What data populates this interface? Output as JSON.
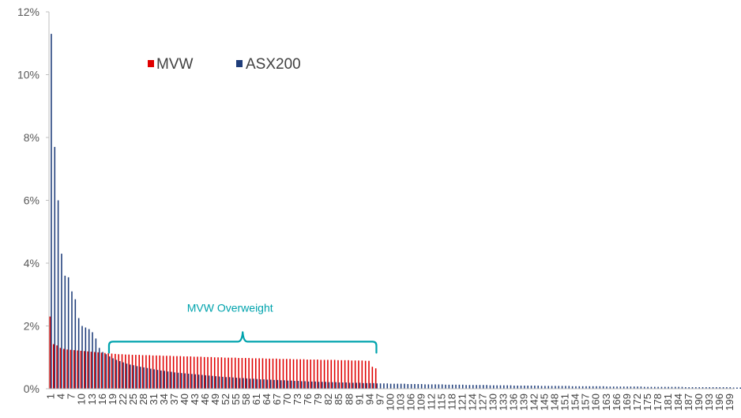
{
  "chart_data": {
    "type": "bar",
    "title": "",
    "xlabel": "",
    "ylabel": "",
    "ylim": [
      0,
      12
    ],
    "yticks": [
      "0%",
      "2%",
      "4%",
      "6%",
      "8%",
      "10%",
      "12%"
    ],
    "x_start": 1,
    "x_end": 200,
    "x_tick_step": 3,
    "grid": false,
    "legend": "top-left",
    "colors": {
      "MVW": "#E00000",
      "ASX200": "#1F3D7A",
      "annotation": "#00A3AD",
      "axis": "#BFBFBF"
    },
    "series": [
      {
        "name": "MVW",
        "values": [
          2.3,
          1.42,
          1.38,
          1.3,
          1.27,
          1.25,
          1.24,
          1.23,
          1.22,
          1.21,
          1.2,
          1.19,
          1.18,
          1.17,
          1.16,
          1.15,
          1.14,
          1.13,
          1.12,
          1.11,
          1.1,
          1.1,
          1.09,
          1.09,
          1.08,
          1.08,
          1.08,
          1.07,
          1.07,
          1.07,
          1.06,
          1.06,
          1.06,
          1.05,
          1.05,
          1.05,
          1.04,
          1.04,
          1.04,
          1.03,
          1.03,
          1.03,
          1.02,
          1.02,
          1.02,
          1.01,
          1.01,
          1.01,
          1.0,
          1.0,
          1.0,
          0.99,
          0.99,
          0.99,
          0.99,
          0.98,
          0.98,
          0.98,
          0.98,
          0.97,
          0.97,
          0.97,
          0.97,
          0.96,
          0.96,
          0.96,
          0.96,
          0.95,
          0.95,
          0.95,
          0.95,
          0.94,
          0.94,
          0.94,
          0.94,
          0.93,
          0.93,
          0.93,
          0.93,
          0.92,
          0.92,
          0.92,
          0.92,
          0.92,
          0.91,
          0.91,
          0.91,
          0.91,
          0.9,
          0.9,
          0.9,
          0.9,
          0.89,
          0.89,
          0.7,
          0.65
        ]
      },
      {
        "name": "ASX200",
        "values": [
          11.3,
          7.7,
          6.0,
          4.3,
          3.6,
          3.55,
          3.1,
          2.85,
          2.25,
          2.0,
          1.95,
          1.9,
          1.8,
          1.6,
          1.3,
          1.17,
          1.1,
          1.03,
          0.97,
          0.92,
          0.88,
          0.84,
          0.8,
          0.77,
          0.75,
          0.72,
          0.7,
          0.68,
          0.66,
          0.64,
          0.62,
          0.6,
          0.58,
          0.57,
          0.55,
          0.54,
          0.52,
          0.51,
          0.5,
          0.49,
          0.48,
          0.47,
          0.46,
          0.45,
          0.44,
          0.43,
          0.42,
          0.41,
          0.4,
          0.39,
          0.38,
          0.37,
          0.37,
          0.36,
          0.35,
          0.34,
          0.34,
          0.33,
          0.32,
          0.32,
          0.31,
          0.3,
          0.3,
          0.29,
          0.29,
          0.28,
          0.28,
          0.27,
          0.27,
          0.26,
          0.26,
          0.25,
          0.25,
          0.24,
          0.24,
          0.23,
          0.23,
          0.23,
          0.22,
          0.22,
          0.22,
          0.21,
          0.21,
          0.21,
          0.2,
          0.2,
          0.2,
          0.19,
          0.19,
          0.19,
          0.19,
          0.18,
          0.18,
          0.18,
          0.18,
          0.17,
          0.17,
          0.17,
          0.17,
          0.16,
          0.16,
          0.16,
          0.16,
          0.16,
          0.15,
          0.15,
          0.15,
          0.15,
          0.15,
          0.14,
          0.14,
          0.14,
          0.14,
          0.14,
          0.14,
          0.13,
          0.13,
          0.13,
          0.13,
          0.13,
          0.13,
          0.12,
          0.12,
          0.12,
          0.12,
          0.12,
          0.12,
          0.12,
          0.11,
          0.11,
          0.11,
          0.11,
          0.11,
          0.11,
          0.11,
          0.1,
          0.1,
          0.1,
          0.1,
          0.1,
          0.1,
          0.1,
          0.1,
          0.09,
          0.09,
          0.09,
          0.09,
          0.09,
          0.09,
          0.09,
          0.09,
          0.09,
          0.08,
          0.08,
          0.08,
          0.08,
          0.08,
          0.08,
          0.08,
          0.08,
          0.08,
          0.08,
          0.07,
          0.07,
          0.07,
          0.07,
          0.07,
          0.07,
          0.07,
          0.07,
          0.07,
          0.07,
          0.07,
          0.06,
          0.06,
          0.06,
          0.06,
          0.06,
          0.06,
          0.06,
          0.06,
          0.06,
          0.06,
          0.06,
          0.06,
          0.05,
          0.05,
          0.05,
          0.05,
          0.05,
          0.05,
          0.05,
          0.05,
          0.05,
          0.05,
          0.05,
          0.05,
          0.05,
          0.05,
          0.04,
          0.04,
          0.04,
          0.04,
          0.04
        ]
      }
    ],
    "annotations": [
      {
        "text": "MVW Overweight",
        "from_x": 18,
        "to_x": 96,
        "at_y": 1.5
      }
    ]
  }
}
